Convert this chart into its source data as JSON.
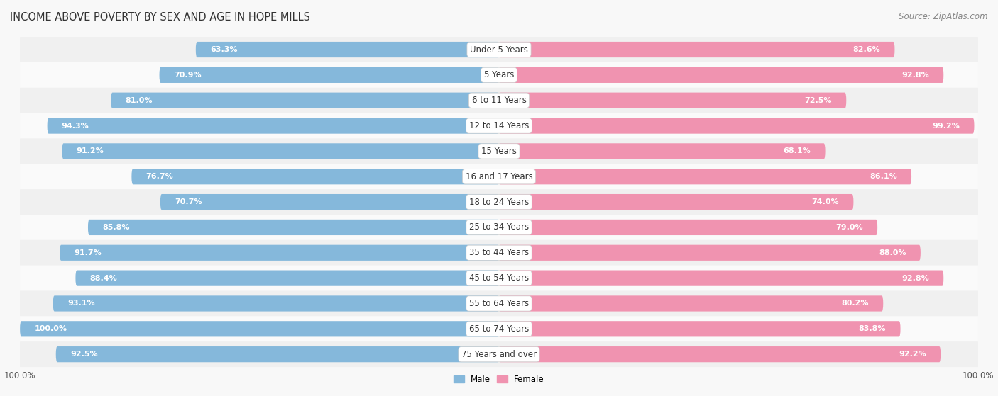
{
  "title": "INCOME ABOVE POVERTY BY SEX AND AGE IN HOPE MILLS",
  "source": "Source: ZipAtlas.com",
  "categories": [
    "Under 5 Years",
    "5 Years",
    "6 to 11 Years",
    "12 to 14 Years",
    "15 Years",
    "16 and 17 Years",
    "18 to 24 Years",
    "25 to 34 Years",
    "35 to 44 Years",
    "45 to 54 Years",
    "55 to 64 Years",
    "65 to 74 Years",
    "75 Years and over"
  ],
  "male": [
    63.3,
    70.9,
    81.0,
    94.3,
    91.2,
    76.7,
    70.7,
    85.8,
    91.7,
    88.4,
    93.1,
    100.0,
    92.5
  ],
  "female": [
    82.6,
    92.8,
    72.5,
    99.2,
    68.1,
    86.1,
    74.0,
    79.0,
    88.0,
    92.8,
    80.2,
    83.8,
    92.2
  ],
  "male_color": "#85b8db",
  "female_color": "#f093b0",
  "male_label": "Male",
  "female_label": "Female",
  "row_color_even": "#f0f0f0",
  "row_color_odd": "#fafafa",
  "max_val": 100.0,
  "title_fontsize": 10.5,
  "source_fontsize": 8.5,
  "label_fontsize": 8.0,
  "cat_fontsize": 8.5,
  "tick_fontsize": 8.5
}
